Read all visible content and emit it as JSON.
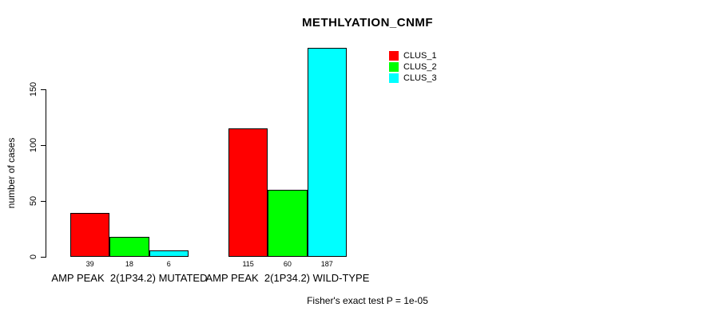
{
  "chart_data": {
    "type": "bar",
    "title": "METHLYATION_CNMF",
    "xlabel": "",
    "ylabel": "number of cases",
    "ylim": [
      0,
      150
    ],
    "yticks": [
      0,
      50,
      100,
      150
    ],
    "grid": false,
    "legend_position": "top-right",
    "bar_border_color": "#000000",
    "series": [
      {
        "name": "CLUS_1",
        "color": "#FF0000"
      },
      {
        "name": "CLUS_2",
        "color": "#00FF00"
      },
      {
        "name": "CLUS_3",
        "color": "#00FFFF"
      }
    ],
    "groups": [
      {
        "label": "AMP PEAK  2(1P34.2) MUTATED",
        "values": [
          39,
          18,
          6
        ]
      },
      {
        "label": "AMP PEAK  2(1P34.2) WILD-TYPE",
        "values": [
          115,
          60,
          187
        ]
      }
    ]
  },
  "footer": {
    "note": "Fisher's exact test P = 1e-05"
  }
}
